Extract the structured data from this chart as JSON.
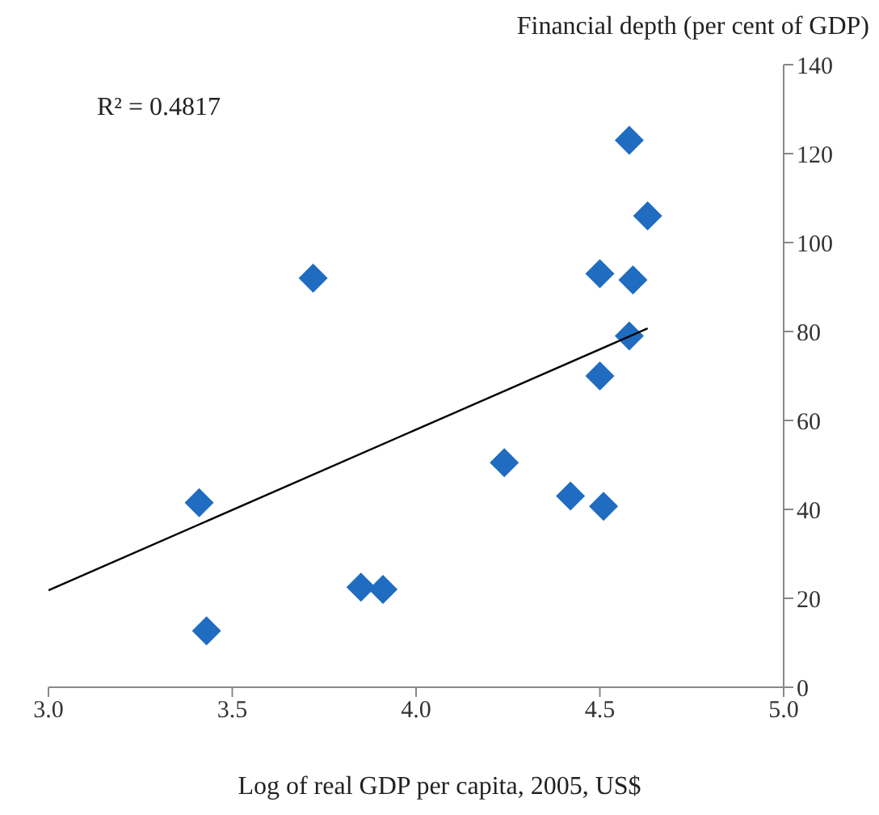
{
  "chart_data": {
    "type": "scatter",
    "xlabel": "Log of real GDP per capita,  2005, US$",
    "ylabel": "Financial depth (per cent of GDP)",
    "annotations": [
      "R² = 0.4817"
    ],
    "xlim": [
      3,
      5
    ],
    "xticks": [
      {
        "value": 3,
        "label": "3.0"
      },
      {
        "value": 3.5,
        "label": "3.5"
      },
      {
        "value": 4,
        "label": "4.0"
      },
      {
        "value": 4.5,
        "label": "4.5"
      },
      {
        "value": 5,
        "label": "5.0"
      }
    ],
    "ylim": [
      0,
      140
    ],
    "yticks": [
      0,
      20,
      40,
      60,
      80,
      100,
      120,
      140
    ],
    "marker": "diamond",
    "series": [
      {
        "color": "#1f6cc0",
        "x": [
          3.41,
          3.43,
          3.72,
          3.85,
          3.91,
          4.24,
          4.42,
          4.51,
          4.5,
          4.5,
          4.58,
          4.59,
          4.58,
          4.63
        ],
        "values": [
          41.5,
          12.7,
          92,
          22.5,
          22,
          50.5,
          43,
          40.7,
          70,
          93,
          79,
          91.6,
          123,
          106
        ]
      },
      {
        "type": "line",
        "color": "#000000",
        "marker": "none",
        "x": [
          3.0,
          4.63
        ],
        "values": [
          21.8,
          80.7
        ]
      }
    ]
  }
}
